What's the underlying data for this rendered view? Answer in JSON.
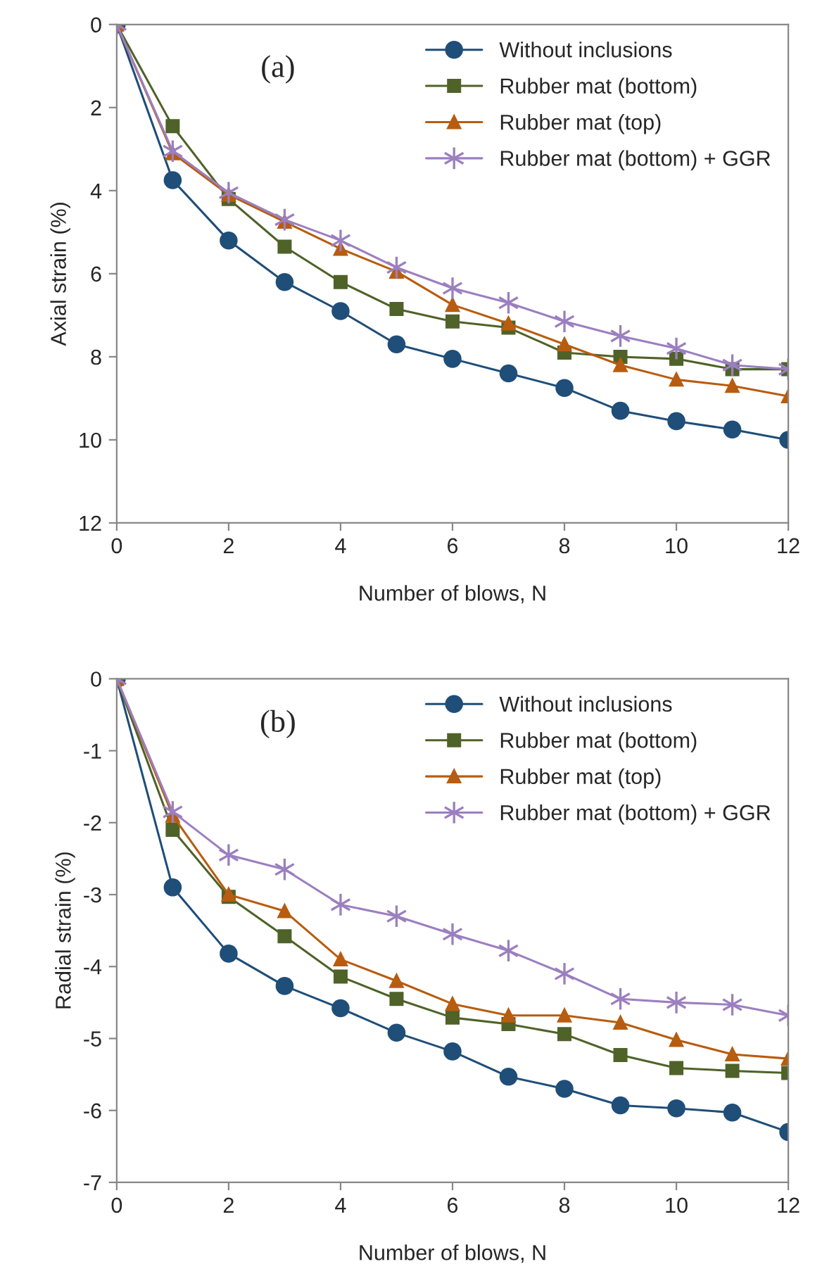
{
  "chart_data": [
    {
      "type": "line",
      "ylabel": "Axial strain (%)",
      "xlabel": "Number of blows, N",
      "annotations": [
        "(a)"
      ],
      "x": [
        0,
        1,
        2,
        3,
        4,
        5,
        6,
        7,
        8,
        9,
        10,
        11,
        12
      ],
      "xlim": [
        0,
        12
      ],
      "xticks": [
        0,
        2,
        4,
        6,
        8,
        10,
        12
      ],
      "ylim": [
        12,
        0
      ],
      "yticks": [
        0,
        2,
        4,
        6,
        8,
        10,
        12
      ],
      "grid": false,
      "legend": "top right",
      "series": [
        {
          "name": "Without inclusions",
          "color": "#1f4e79",
          "marker": "circle",
          "values": [
            0,
            3.75,
            5.2,
            6.2,
            6.9,
            7.7,
            8.05,
            8.4,
            8.75,
            9.3,
            9.55,
            9.75,
            10.0
          ]
        },
        {
          "name": "Rubber mat (bottom)",
          "color": "#4f6228",
          "marker": "square",
          "values": [
            0,
            2.45,
            4.2,
            5.35,
            6.2,
            6.85,
            7.15,
            7.3,
            7.9,
            8.0,
            8.05,
            8.3,
            8.3
          ]
        },
        {
          "name": "Rubber mat (top)",
          "color": "#b85c0f",
          "marker": "triangle",
          "values": [
            0,
            3.1,
            4.1,
            4.75,
            5.4,
            5.95,
            6.75,
            7.2,
            7.7,
            8.2,
            8.55,
            8.7,
            8.95
          ]
        },
        {
          "name": "Rubber mat (bottom) + GGR",
          "color": "#9b7fc0",
          "marker": "cross",
          "values": [
            0,
            3.05,
            4.05,
            4.7,
            5.2,
            5.85,
            6.35,
            6.7,
            7.15,
            7.5,
            7.8,
            8.2,
            8.3
          ]
        }
      ]
    },
    {
      "type": "line",
      "ylabel": "Radial strain (%)",
      "xlabel": "Number of blows, N",
      "annotations": [
        "(b)"
      ],
      "x": [
        0,
        1,
        2,
        3,
        4,
        5,
        6,
        7,
        8,
        9,
        10,
        11,
        12
      ],
      "xlim": [
        0,
        12
      ],
      "xticks": [
        0,
        2,
        4,
        6,
        8,
        10,
        12
      ],
      "ylim": [
        -7,
        0
      ],
      "yticks": [
        -7,
        -6,
        -5,
        -4,
        -3,
        -2,
        -1,
        0
      ],
      "grid": false,
      "legend": "top right",
      "series": [
        {
          "name": "Without inclusions",
          "color": "#1f4e79",
          "marker": "circle",
          "values": [
            0,
            -2.9,
            -3.82,
            -4.27,
            -4.58,
            -4.92,
            -5.18,
            -5.53,
            -5.7,
            -5.93,
            -5.97,
            -6.03,
            -6.3
          ]
        },
        {
          "name": "Rubber mat (bottom)",
          "color": "#4f6228",
          "marker": "square",
          "values": [
            0,
            -2.1,
            -3.03,
            -3.58,
            -4.14,
            -4.45,
            -4.71,
            -4.8,
            -4.94,
            -5.23,
            -5.41,
            -5.45,
            -5.48
          ]
        },
        {
          "name": "Rubber mat (top)",
          "color": "#b85c0f",
          "marker": "triangle",
          "values": [
            0,
            -1.9,
            -3.0,
            -3.23,
            -3.9,
            -4.2,
            -4.52,
            -4.68,
            -4.68,
            -4.78,
            -5.02,
            -5.22,
            -5.28
          ]
        },
        {
          "name": "Rubber mat (bottom) + GGR",
          "color": "#9b7fc0",
          "marker": "cross",
          "values": [
            0,
            -1.85,
            -2.45,
            -2.65,
            -3.14,
            -3.3,
            -3.55,
            -3.78,
            -4.1,
            -4.45,
            -4.5,
            -4.53,
            -4.68
          ]
        }
      ]
    }
  ]
}
